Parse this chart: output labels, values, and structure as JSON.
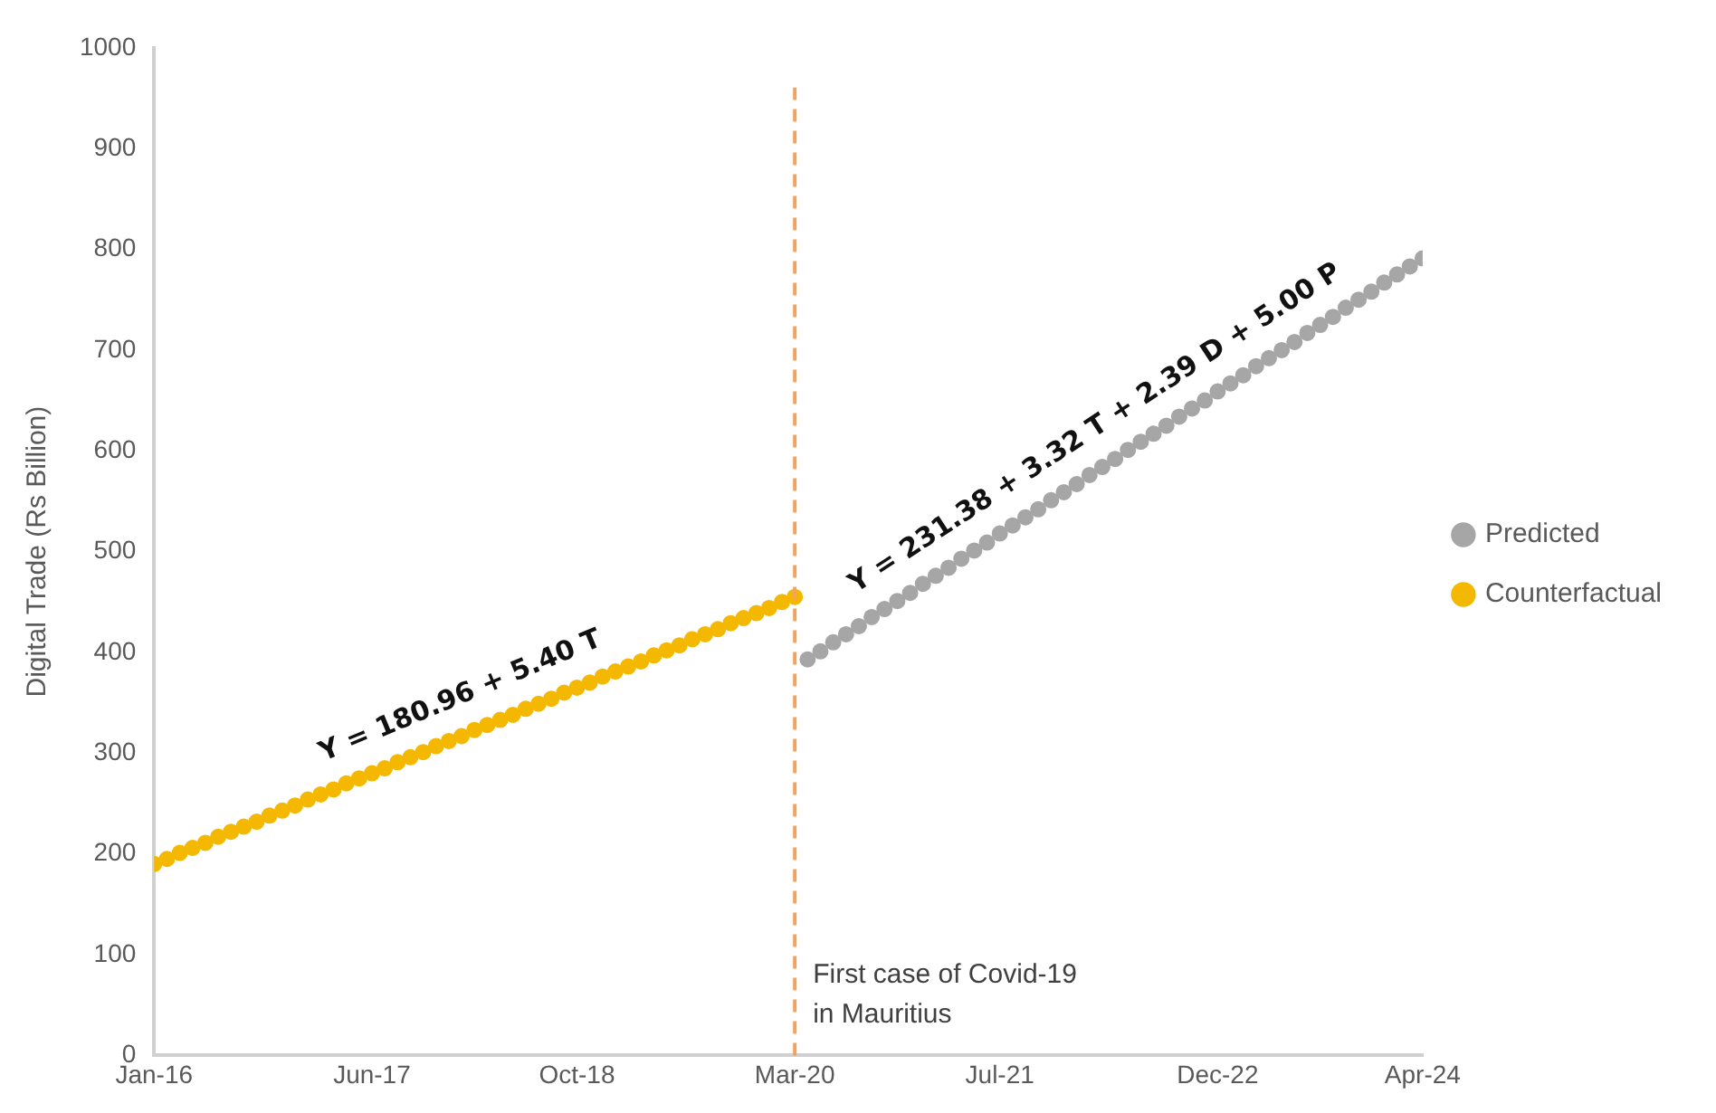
{
  "chart_data": {
    "type": "scatter",
    "ylabel": "Digital Trade (Rs Billion)",
    "marker": "circle",
    "legend": "right",
    "grid": false,
    "xlim": [
      "2016-01",
      "2024-04"
    ],
    "xticks": [
      {
        "value": "2016-01",
        "label": "Jan-16"
      },
      {
        "value": "2017-06",
        "label": "Jun-17"
      },
      {
        "value": "2018-10",
        "label": "Oct-18"
      },
      {
        "value": "2020-03",
        "label": "Mar-20"
      },
      {
        "value": "2021-07",
        "label": "Jul-21"
      },
      {
        "value": "2022-12",
        "label": "Dec-22"
      },
      {
        "value": "2024-04",
        "label": "Apr-24"
      }
    ],
    "ylim": [
      0,
      1000
    ],
    "yticks": [
      0,
      100,
      200,
      300,
      400,
      500,
      600,
      700,
      800,
      900,
      1000
    ],
    "series": [
      {
        "name": "Predicted",
        "color": "#a6a6a6",
        "x": [
          "2020-04",
          "2020-05",
          "2020-06",
          "2020-07",
          "2020-08",
          "2020-09",
          "2020-10",
          "2020-11",
          "2020-12",
          "2021-01",
          "2021-02",
          "2021-03",
          "2021-04",
          "2021-05",
          "2021-06",
          "2021-07",
          "2021-08",
          "2021-09",
          "2021-10",
          "2021-11",
          "2021-12",
          "2022-01",
          "2022-02",
          "2022-03",
          "2022-04",
          "2022-05",
          "2022-06",
          "2022-07",
          "2022-08",
          "2022-09",
          "2022-10",
          "2022-11",
          "2022-12",
          "2023-01",
          "2023-02",
          "2023-03",
          "2023-04",
          "2023-05",
          "2023-06",
          "2023-07",
          "2023-08",
          "2023-09",
          "2023-10",
          "2023-11",
          "2023-12",
          "2024-01",
          "2024-02",
          "2024-03",
          "2024-04"
        ],
        "values": [
          393,
          401,
          410,
          418,
          426,
          435,
          443,
          451,
          459,
          468,
          476,
          484,
          493,
          501,
          509,
          518,
          526,
          534,
          542,
          551,
          559,
          567,
          576,
          584,
          592,
          601,
          609,
          617,
          625,
          634,
          642,
          650,
          659,
          667,
          675,
          684,
          692,
          700,
          708,
          717,
          725,
          733,
          742,
          750,
          758,
          767,
          775,
          783,
          791
        ]
      },
      {
        "name": "Counterfactual",
        "color": "#f5b800",
        "x": [
          "2016-01",
          "2016-02",
          "2016-03",
          "2016-04",
          "2016-05",
          "2016-06",
          "2016-07",
          "2016-08",
          "2016-09",
          "2016-10",
          "2016-11",
          "2016-12",
          "2017-01",
          "2017-02",
          "2017-03",
          "2017-04",
          "2017-05",
          "2017-06",
          "2017-07",
          "2017-08",
          "2017-09",
          "2017-10",
          "2017-11",
          "2017-12",
          "2018-01",
          "2018-02",
          "2018-03",
          "2018-04",
          "2018-05",
          "2018-06",
          "2018-07",
          "2018-08",
          "2018-09",
          "2018-10",
          "2018-11",
          "2018-12",
          "2019-01",
          "2019-02",
          "2019-03",
          "2019-04",
          "2019-05",
          "2019-06",
          "2019-07",
          "2019-08",
          "2019-09",
          "2019-10",
          "2019-11",
          "2019-12",
          "2020-01",
          "2020-02",
          "2020-03"
        ],
        "values": [
          190,
          195,
          201,
          206,
          211,
          217,
          222,
          227,
          232,
          238,
          243,
          248,
          254,
          259,
          264,
          270,
          275,
          280,
          285,
          291,
          296,
          301,
          307,
          312,
          317,
          323,
          328,
          333,
          338,
          344,
          349,
          354,
          360,
          365,
          370,
          376,
          381,
          386,
          391,
          397,
          402,
          407,
          413,
          418,
          423,
          429,
          434,
          439,
          444,
          450,
          455
        ]
      }
    ],
    "ref_lines": [
      {
        "axis": "x",
        "value": "2020-03",
        "label": "First case of Covid-19 in Mauritius",
        "color": "#f4a261",
        "line_style": "dashed"
      }
    ],
    "annotations": [
      "Y = 180.96 + 5.40 T",
      "Y = 231.38 + 3.32 T + 2.39 D + 5.00 P"
    ]
  }
}
